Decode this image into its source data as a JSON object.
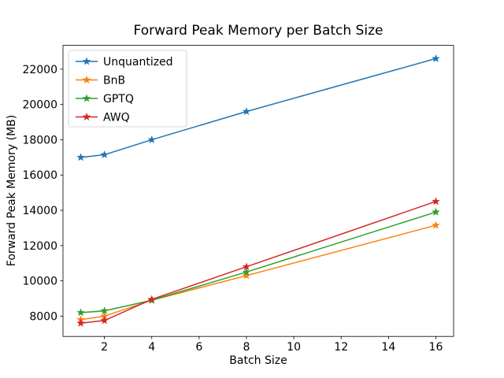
{
  "chart_data": {
    "type": "line",
    "title": "Forward Peak Memory per Batch Size",
    "xlabel": "Batch Size",
    "ylabel": "Forward Peak Memory (MB)",
    "x": [
      1,
      2,
      4,
      8,
      16
    ],
    "xlim": [
      0.25,
      16.75
    ],
    "ylim": [
      6850,
      23350
    ],
    "xticks": [
      2,
      4,
      6,
      8,
      10,
      12,
      14,
      16
    ],
    "yticks": [
      8000,
      10000,
      12000,
      14000,
      16000,
      18000,
      20000,
      22000
    ],
    "grid": false,
    "legend_position": "upper left",
    "marker": "star",
    "series": [
      {
        "name": "Unquantized",
        "color": "#1f77b4",
        "values": [
          17000,
          17150,
          18000,
          19600,
          22600
        ]
      },
      {
        "name": "BnB",
        "color": "#ff7f0e",
        "values": [
          7800,
          8000,
          8900,
          10300,
          13150
        ]
      },
      {
        "name": "GPTQ",
        "color": "#2ca02c",
        "values": [
          8200,
          8300,
          8900,
          10500,
          13900
        ]
      },
      {
        "name": "AWQ",
        "color": "#d62728",
        "values": [
          7600,
          7750,
          8950,
          10800,
          14500
        ]
      }
    ]
  }
}
